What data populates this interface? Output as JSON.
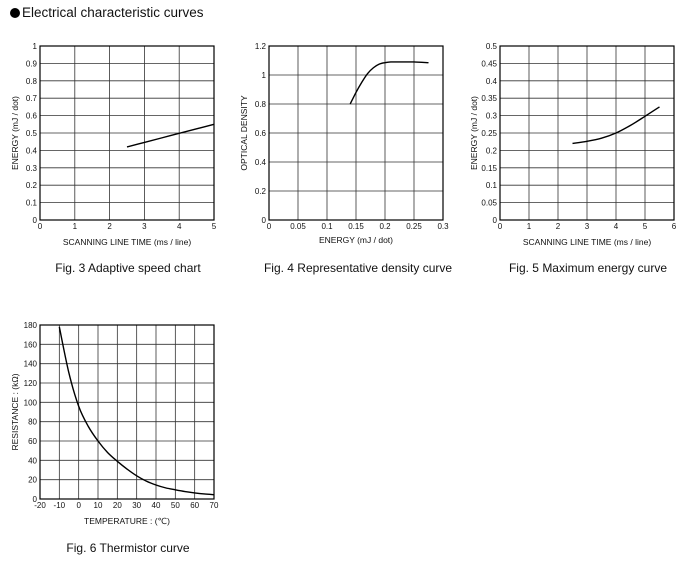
{
  "page": {
    "title": "Electrical characteristic curves"
  },
  "charts": [
    {
      "caption": "Fig. 3 Adaptive speed chart"
    },
    {
      "caption": "Fig. 4 Representative density curve"
    },
    {
      "caption": "Fig. 5 Maximum energy curve"
    },
    {
      "caption": "Fig. 6 Thermistor curve"
    }
  ],
  "chart_data": [
    {
      "type": "line",
      "title": "",
      "xlabel": "SCANNING  LINE  TIME  (ms / line)",
      "ylabel": "ENERGY  (mJ / dot)",
      "xlim": [
        0,
        5
      ],
      "ylim": [
        0,
        1
      ],
      "xticks": [
        "0",
        "1",
        "2",
        "3",
        "4",
        "5"
      ],
      "yticks": [
        "0",
        "0.1",
        "0.2",
        "0.3",
        "0.4",
        "0.5",
        "0.6",
        "0.7",
        "0.8",
        "0.9",
        "1"
      ],
      "grid": true,
      "series": [
        {
          "x": [
            2.5,
            3,
            3.5,
            4,
            4.5,
            5
          ],
          "y": [
            0.42,
            0.446,
            0.472,
            0.498,
            0.524,
            0.55
          ]
        }
      ]
    },
    {
      "type": "line",
      "title": "",
      "xlabel": "ENERGY  (mJ / dot)",
      "ylabel": "OPTICAL  DENSITY",
      "xlim": [
        0,
        0.3
      ],
      "ylim": [
        0,
        1.2
      ],
      "xticks": [
        "0",
        "0.05",
        "0.1",
        "0.15",
        "0.2",
        "0.25",
        "0.3"
      ],
      "yticks": [
        "0",
        "0.2",
        "0.4",
        "0.6",
        "0.8",
        "1",
        "1.2"
      ],
      "grid": true,
      "series": [
        {
          "x": [
            0.14,
            0.15,
            0.16,
            0.17,
            0.18,
            0.19,
            0.2,
            0.21,
            0.23,
            0.25,
            0.275
          ],
          "y": [
            0.8,
            0.88,
            0.95,
            1.01,
            1.05,
            1.075,
            1.085,
            1.09,
            1.09,
            1.09,
            1.085
          ]
        }
      ]
    },
    {
      "type": "line",
      "title": "",
      "xlabel": "SCANNING  LINE  TIME  (ms / line)",
      "ylabel": "ENERGY  (mJ / dot)",
      "xlim": [
        0,
        6
      ],
      "ylim": [
        0,
        0.5
      ],
      "xticks": [
        "0",
        "1",
        "2",
        "3",
        "4",
        "5",
        "6"
      ],
      "yticks": [
        "0",
        "0.05",
        "0.1",
        "0.15",
        "0.2",
        "0.25",
        "0.3",
        "0.35",
        "0.4",
        "0.45",
        "0.5"
      ],
      "grid": true,
      "series": [
        {
          "x": [
            2.5,
            3,
            3.5,
            4,
            4.5,
            5,
            5.5
          ],
          "y": [
            0.22,
            0.226,
            0.235,
            0.25,
            0.272,
            0.298,
            0.325
          ]
        }
      ]
    },
    {
      "type": "line",
      "title": "",
      "xlabel": "TEMPERATURE :  (℃)",
      "ylabel": "RESISTANCE :  (kΩ)",
      "xlim": [
        -20,
        70
      ],
      "ylim": [
        0,
        180
      ],
      "xticks": [
        "-20",
        "-10",
        "0",
        "10",
        "20",
        "30",
        "40",
        "50",
        "60",
        "70"
      ],
      "yticks": [
        "0",
        "20",
        "40",
        "60",
        "80",
        "100",
        "120",
        "140",
        "160",
        "180"
      ],
      "grid": true,
      "series": [
        {
          "x": [
            -10,
            -5,
            0,
            5,
            10,
            15,
            20,
            25,
            30,
            35,
            40,
            45,
            50,
            55,
            60,
            65,
            70
          ],
          "y": [
            178,
            130,
            96,
            75,
            60,
            48,
            39,
            31,
            24,
            18.5,
            14.5,
            11.5,
            9.5,
            7.7,
            6.3,
            5.2,
            4.5
          ]
        }
      ]
    }
  ]
}
